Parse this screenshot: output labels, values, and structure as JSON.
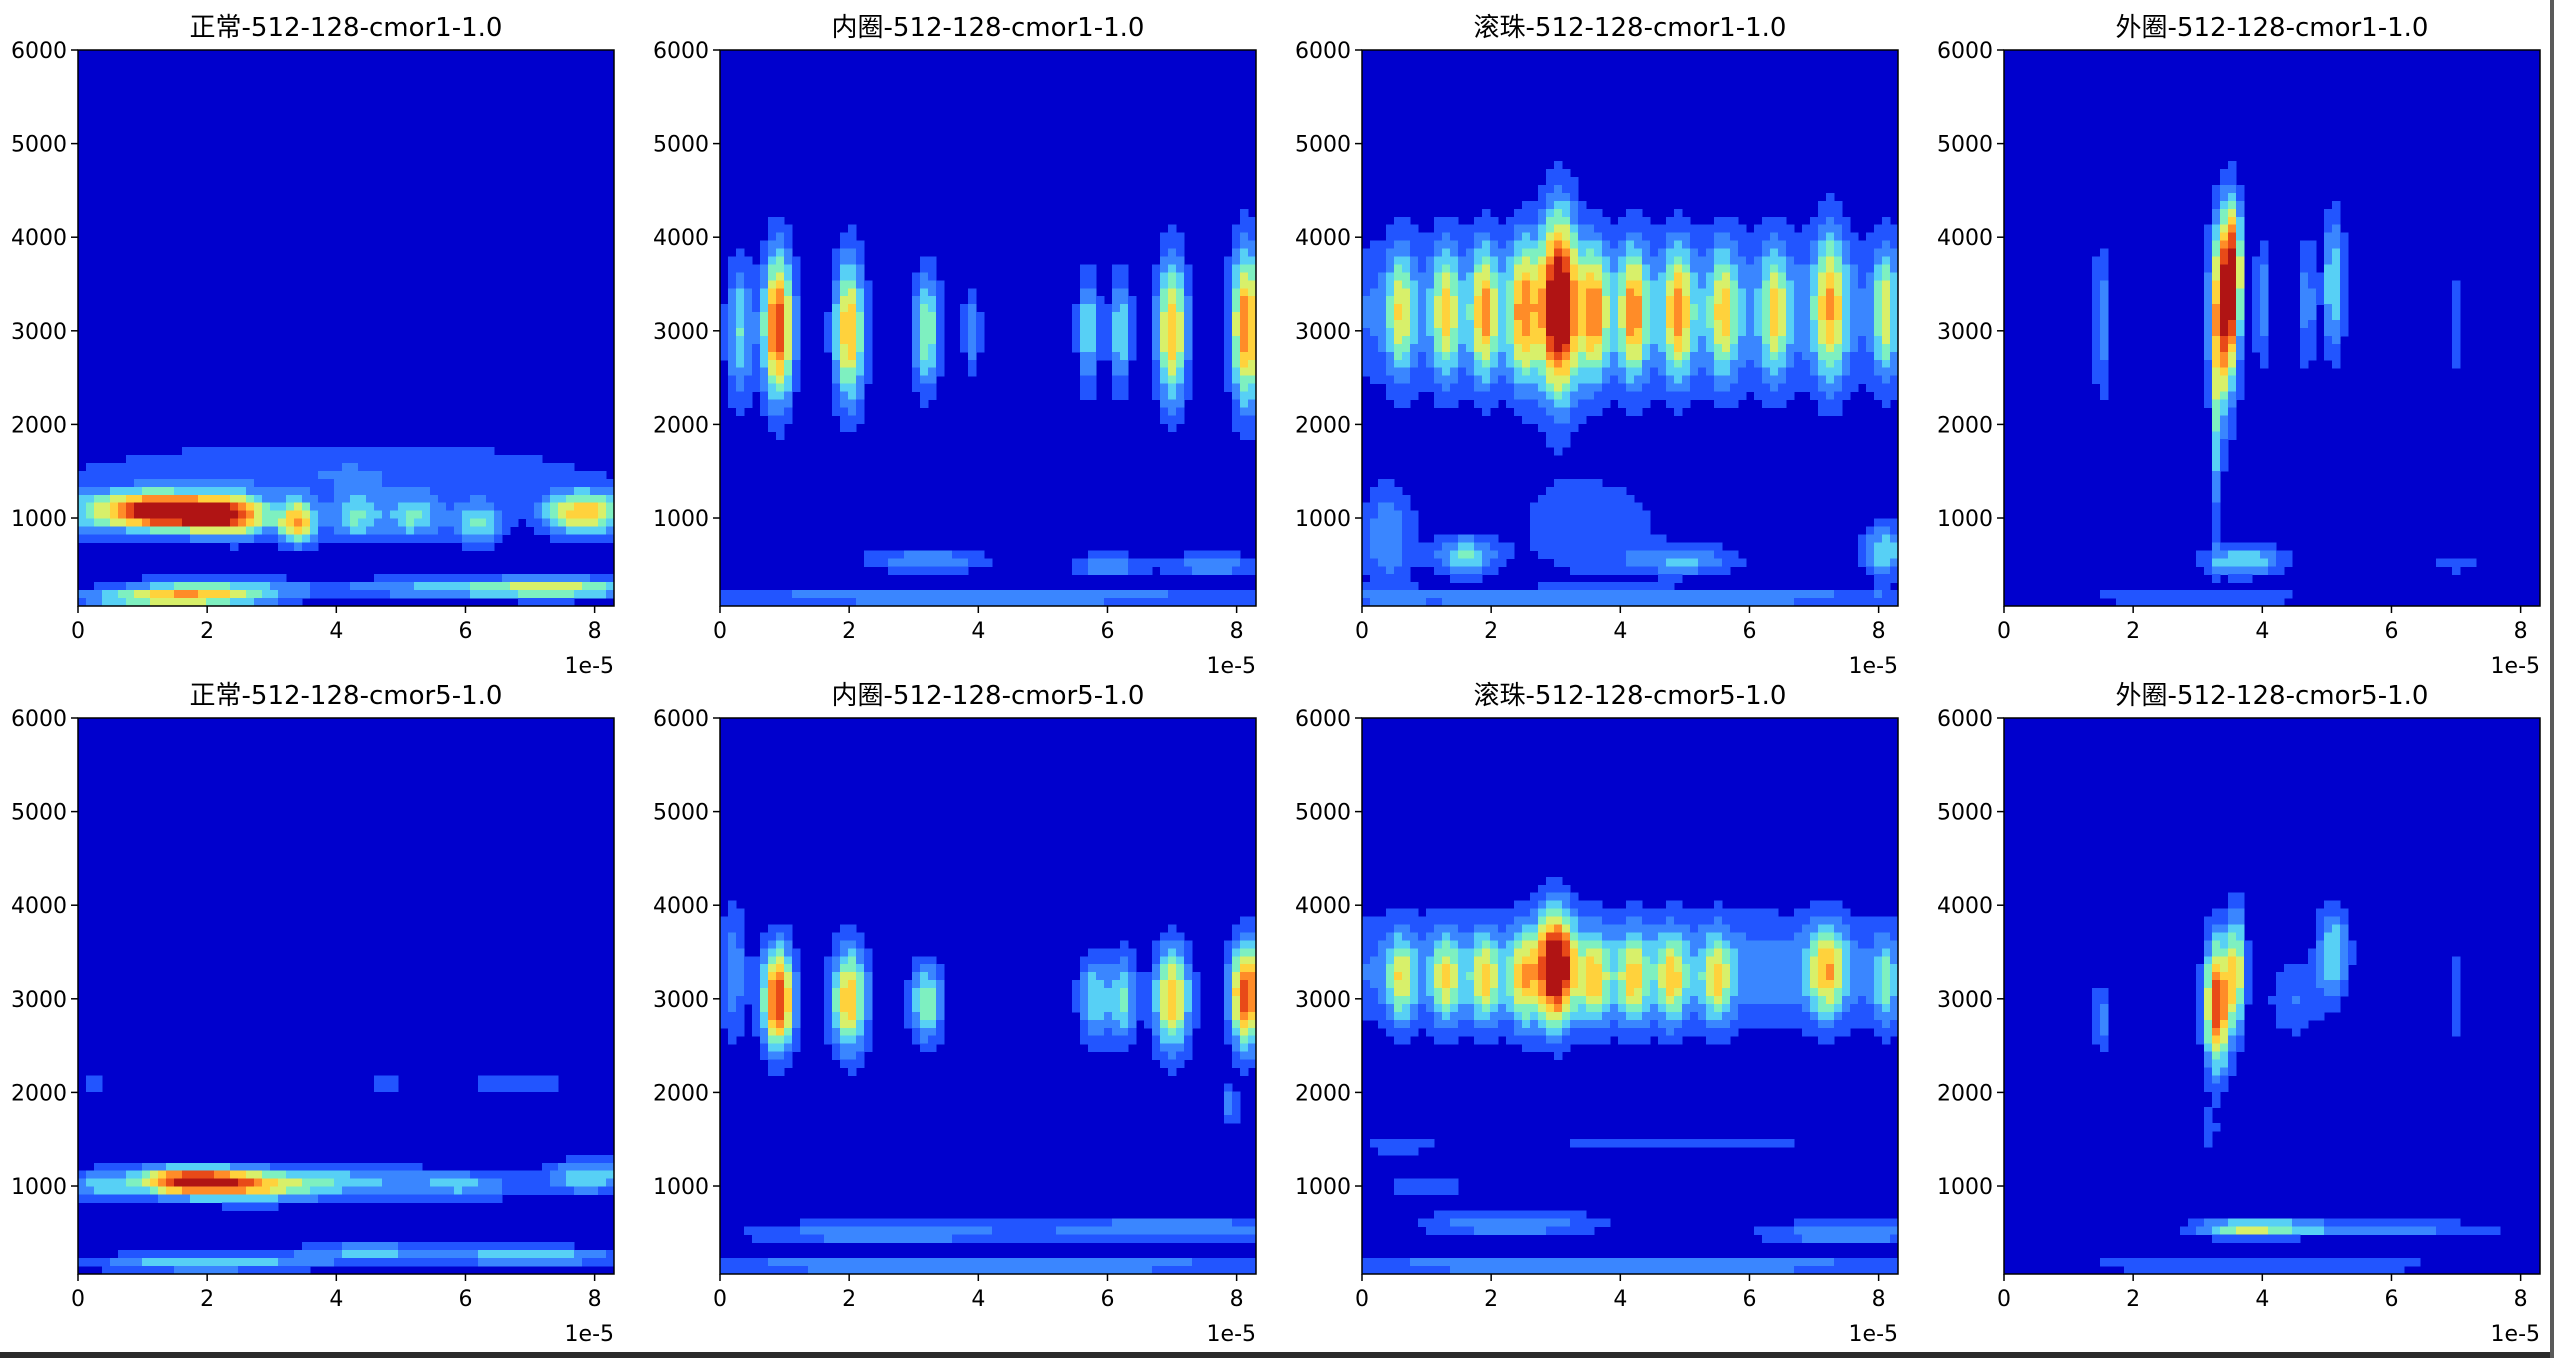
{
  "colors": {
    "background": "#0000cd",
    "levels": [
      "#0000cd",
      "#2255ff",
      "#3a86ff",
      "#57d0f5",
      "#7ef0c0",
      "#d8f06a",
      "#ffd23c",
      "#ff8c28",
      "#e84a18",
      "#b01414"
    ]
  },
  "chart_data": [
    {
      "type": "heatmap",
      "title": "正常-512-128-cmor1-1.0",
      "x_ticks": [
        "0",
        "2",
        "4",
        "6",
        "8"
      ],
      "x_offset_label": "1e-5",
      "y_ticks": [
        "1000",
        "2000",
        "3000",
        "4000",
        "5000",
        "6000"
      ],
      "xlim": [
        0,
        8.3
      ],
      "ylim": [
        60,
        6000
      ],
      "blobs": [
        {
          "x": 1.8,
          "y": 1050,
          "sx": 0.55,
          "sy": 140,
          "v": 9
        },
        {
          "x": 1.0,
          "y": 1080,
          "sx": 0.45,
          "sy": 140,
          "v": 7
        },
        {
          "x": 2.5,
          "y": 1000,
          "sx": 0.4,
          "sy": 160,
          "v": 5
        },
        {
          "x": 3.4,
          "y": 950,
          "sx": 0.2,
          "sy": 160,
          "v": 7
        },
        {
          "x": 4.3,
          "y": 1000,
          "sx": 0.3,
          "sy": 180,
          "v": 4
        },
        {
          "x": 5.2,
          "y": 1000,
          "sx": 0.3,
          "sy": 170,
          "v": 4
        },
        {
          "x": 6.2,
          "y": 950,
          "sx": 0.3,
          "sy": 170,
          "v": 4
        },
        {
          "x": 7.6,
          "y": 1050,
          "sx": 0.35,
          "sy": 170,
          "v": 5
        },
        {
          "x": 8.1,
          "y": 1050,
          "sx": 0.3,
          "sy": 170,
          "v": 4
        },
        {
          "x": 0.2,
          "y": 1050,
          "sx": 0.35,
          "sy": 200,
          "v": 3
        },
        {
          "x": 2.0,
          "y": 250,
          "sx": 1.0,
          "sy": 80,
          "v": 4
        },
        {
          "x": 5.5,
          "y": 250,
          "sx": 1.2,
          "sy": 80,
          "v": 3
        },
        {
          "x": 7.5,
          "y": 250,
          "sx": 0.9,
          "sy": 80,
          "v": 5
        },
        {
          "x": 1.5,
          "y": 140,
          "sx": 1.0,
          "sy": 60,
          "v": 6
        },
        {
          "x": 4.0,
          "y": 1500,
          "sx": 3.0,
          "sy": 250,
          "v": 2
        }
      ]
    },
    {
      "type": "heatmap",
      "title": "内圈-512-128-cmor1-1.0",
      "x_ticks": [
        "0",
        "2",
        "4",
        "6",
        "8"
      ],
      "x_offset_label": "1e-5",
      "y_ticks": [
        "1000",
        "2000",
        "3000",
        "4000",
        "5000",
        "6000"
      ],
      "xlim": [
        0,
        8.3
      ],
      "ylim": [
        60,
        6000
      ],
      "blobs": [
        {
          "x": 0.9,
          "y": 3050,
          "sx": 0.17,
          "sy": 560,
          "v": 9
        },
        {
          "x": 2.0,
          "y": 3000,
          "sx": 0.17,
          "sy": 560,
          "v": 7
        },
        {
          "x": 3.2,
          "y": 3000,
          "sx": 0.15,
          "sy": 450,
          "v": 5
        },
        {
          "x": 3.9,
          "y": 3000,
          "sx": 0.1,
          "sy": 300,
          "v": 3
        },
        {
          "x": 5.7,
          "y": 3000,
          "sx": 0.12,
          "sy": 450,
          "v": 4
        },
        {
          "x": 6.2,
          "y": 3000,
          "sx": 0.12,
          "sy": 450,
          "v": 4
        },
        {
          "x": 7.0,
          "y": 3000,
          "sx": 0.17,
          "sy": 560,
          "v": 7
        },
        {
          "x": 8.15,
          "y": 3050,
          "sx": 0.17,
          "sy": 600,
          "v": 8
        },
        {
          "x": 0.3,
          "y": 3000,
          "sx": 0.15,
          "sy": 550,
          "v": 4
        },
        {
          "x": 3.2,
          "y": 550,
          "sx": 0.7,
          "sy": 90,
          "v": 3
        },
        {
          "x": 6.0,
          "y": 500,
          "sx": 0.4,
          "sy": 90,
          "v": 3
        },
        {
          "x": 7.6,
          "y": 500,
          "sx": 0.5,
          "sy": 90,
          "v": 3
        },
        {
          "x": 4.0,
          "y": 150,
          "sx": 4.5,
          "sy": 60,
          "v": 3
        }
      ]
    },
    {
      "type": "heatmap",
      "title": "滚珠-512-128-cmor1-1.0",
      "x_ticks": [
        "0",
        "2",
        "4",
        "6",
        "8"
      ],
      "x_offset_label": "1e-5",
      "y_ticks": [
        "1000",
        "2000",
        "3000",
        "4000",
        "5000",
        "6000"
      ],
      "xlim": [
        0,
        8.3
      ],
      "ylim": [
        60,
        6000
      ],
      "blobs": [
        {
          "x": 3.05,
          "y": 3300,
          "sx": 0.2,
          "sy": 700,
          "v": 9
        },
        {
          "x": 2.5,
          "y": 3200,
          "sx": 0.15,
          "sy": 550,
          "v": 5
        },
        {
          "x": 0.6,
          "y": 3200,
          "sx": 0.14,
          "sy": 500,
          "v": 4
        },
        {
          "x": 1.3,
          "y": 3200,
          "sx": 0.14,
          "sy": 500,
          "v": 4
        },
        {
          "x": 1.9,
          "y": 3200,
          "sx": 0.14,
          "sy": 500,
          "v": 5
        },
        {
          "x": 3.6,
          "y": 3200,
          "sx": 0.14,
          "sy": 500,
          "v": 5
        },
        {
          "x": 4.2,
          "y": 3200,
          "sx": 0.14,
          "sy": 500,
          "v": 5
        },
        {
          "x": 4.9,
          "y": 3200,
          "sx": 0.14,
          "sy": 500,
          "v": 5
        },
        {
          "x": 5.6,
          "y": 3200,
          "sx": 0.14,
          "sy": 500,
          "v": 4
        },
        {
          "x": 6.4,
          "y": 3200,
          "sx": 0.14,
          "sy": 500,
          "v": 4
        },
        {
          "x": 7.25,
          "y": 3300,
          "sx": 0.17,
          "sy": 600,
          "v": 5
        },
        {
          "x": 8.1,
          "y": 3200,
          "sx": 0.12,
          "sy": 500,
          "v": 4
        },
        {
          "x": 4.0,
          "y": 3200,
          "sx": 4.5,
          "sy": 600,
          "v": 3
        },
        {
          "x": 1.6,
          "y": 600,
          "sx": 0.35,
          "sy": 150,
          "v": 4
        },
        {
          "x": 0.4,
          "y": 800,
          "sx": 0.3,
          "sy": 400,
          "v": 3
        },
        {
          "x": 3.5,
          "y": 900,
          "sx": 0.8,
          "sy": 400,
          "v": 2
        },
        {
          "x": 5.0,
          "y": 550,
          "sx": 0.6,
          "sy": 120,
          "v": 3
        },
        {
          "x": 8.1,
          "y": 650,
          "sx": 0.25,
          "sy": 200,
          "v": 4
        },
        {
          "x": 4.0,
          "y": 150,
          "sx": 4.5,
          "sy": 70,
          "v": 3
        }
      ]
    },
    {
      "type": "heatmap",
      "title": "外圈-512-128-cmor1-1.0",
      "x_ticks": [
        "0",
        "2",
        "4",
        "6",
        "8"
      ],
      "x_offset_label": "1e-5",
      "y_ticks": [
        "1000",
        "2000",
        "3000",
        "4000",
        "5000",
        "6000"
      ],
      "xlim": [
        0,
        8.3
      ],
      "ylim": [
        60,
        6000
      ],
      "blobs": [
        {
          "x": 3.4,
          "y": 3200,
          "sx": 0.15,
          "sy": 700,
          "v": 9
        },
        {
          "x": 3.55,
          "y": 3700,
          "sx": 0.1,
          "sy": 500,
          "v": 6
        },
        {
          "x": 3.3,
          "y": 1800,
          "sx": 0.06,
          "sy": 700,
          "v": 3
        },
        {
          "x": 1.5,
          "y": 3100,
          "sx": 0.08,
          "sy": 600,
          "v": 3
        },
        {
          "x": 4.0,
          "y": 3300,
          "sx": 0.1,
          "sy": 450,
          "v": 3
        },
        {
          "x": 4.7,
          "y": 3300,
          "sx": 0.08,
          "sy": 500,
          "v": 3
        },
        {
          "x": 5.1,
          "y": 3500,
          "sx": 0.12,
          "sy": 550,
          "v": 4
        },
        {
          "x": 7.0,
          "y": 3100,
          "sx": 0.05,
          "sy": 400,
          "v": 2
        },
        {
          "x": 3.7,
          "y": 550,
          "sx": 0.45,
          "sy": 120,
          "v": 4
        },
        {
          "x": 7.0,
          "y": 500,
          "sx": 0.3,
          "sy": 50,
          "v": 2
        },
        {
          "x": 3.0,
          "y": 150,
          "sx": 1.5,
          "sy": 60,
          "v": 2
        }
      ]
    },
    {
      "type": "heatmap",
      "title": "正常-512-128-cmor5-1.0",
      "x_ticks": [
        "0",
        "2",
        "4",
        "6",
        "8"
      ],
      "x_offset_label": "1e-5",
      "y_ticks": [
        "1000",
        "2000",
        "3000",
        "4000",
        "5000",
        "6000"
      ],
      "xlim": [
        0,
        8.3
      ],
      "ylim": [
        60,
        6000
      ],
      "blobs": [
        {
          "x": 1.7,
          "y": 1050,
          "sx": 0.65,
          "sy": 110,
          "v": 9
        },
        {
          "x": 2.8,
          "y": 1000,
          "sx": 0.7,
          "sy": 120,
          "v": 5
        },
        {
          "x": 4.3,
          "y": 1050,
          "sx": 0.8,
          "sy": 130,
          "v": 3
        },
        {
          "x": 6.0,
          "y": 1000,
          "sx": 0.6,
          "sy": 120,
          "v": 3
        },
        {
          "x": 7.9,
          "y": 1100,
          "sx": 0.5,
          "sy": 130,
          "v": 4
        },
        {
          "x": 0.3,
          "y": 1000,
          "sx": 0.3,
          "sy": 120,
          "v": 3
        },
        {
          "x": 2.0,
          "y": 180,
          "sx": 1.3,
          "sy": 70,
          "v": 4
        },
        {
          "x": 4.5,
          "y": 300,
          "sx": 0.8,
          "sy": 70,
          "v": 3
        },
        {
          "x": 7.0,
          "y": 250,
          "sx": 1.0,
          "sy": 70,
          "v": 4
        },
        {
          "x": 0.2,
          "y": 2100,
          "sx": 0.12,
          "sy": 80,
          "v": 2
        },
        {
          "x": 4.8,
          "y": 2100,
          "sx": 0.18,
          "sy": 70,
          "v": 2
        },
        {
          "x": 6.8,
          "y": 2100,
          "sx": 0.6,
          "sy": 70,
          "v": 2
        }
      ]
    },
    {
      "type": "heatmap",
      "title": "内圈-512-128-cmor5-1.0",
      "x_ticks": [
        "0",
        "2",
        "4",
        "6",
        "8"
      ],
      "x_offset_label": "1e-5",
      "y_ticks": [
        "1000",
        "2000",
        "3000",
        "4000",
        "5000",
        "6000"
      ],
      "xlim": [
        0,
        8.3
      ],
      "ylim": [
        60,
        6000
      ],
      "blobs": [
        {
          "x": 0.9,
          "y": 3000,
          "sx": 0.18,
          "sy": 400,
          "v": 9
        },
        {
          "x": 2.0,
          "y": 3000,
          "sx": 0.2,
          "sy": 400,
          "v": 7
        },
        {
          "x": 3.2,
          "y": 2950,
          "sx": 0.18,
          "sy": 300,
          "v": 5
        },
        {
          "x": 5.8,
          "y": 3000,
          "sx": 0.18,
          "sy": 350,
          "v": 4
        },
        {
          "x": 6.25,
          "y": 3000,
          "sx": 0.15,
          "sy": 350,
          "v": 4
        },
        {
          "x": 7.0,
          "y": 3000,
          "sx": 0.2,
          "sy": 400,
          "v": 7
        },
        {
          "x": 8.15,
          "y": 3050,
          "sx": 0.18,
          "sy": 400,
          "v": 9
        },
        {
          "x": 0.2,
          "y": 3300,
          "sx": 0.15,
          "sy": 500,
          "v": 3
        },
        {
          "x": 7.9,
          "y": 1850,
          "sx": 0.08,
          "sy": 150,
          "v": 3
        },
        {
          "x": 2.5,
          "y": 500,
          "sx": 1.5,
          "sy": 90,
          "v": 3
        },
        {
          "x": 7.0,
          "y": 550,
          "sx": 1.5,
          "sy": 90,
          "v": 3
        },
        {
          "x": 4.0,
          "y": 150,
          "sx": 4.5,
          "sy": 70,
          "v": 3
        }
      ]
    },
    {
      "type": "heatmap",
      "title": "滚珠-512-128-cmor5-1.0",
      "x_ticks": [
        "0",
        "2",
        "4",
        "6",
        "8"
      ],
      "x_offset_label": "1e-5",
      "y_ticks": [
        "1000",
        "2000",
        "3000",
        "4000",
        "5000",
        "6000"
      ],
      "xlim": [
        0,
        8.3
      ],
      "ylim": [
        60,
        6000
      ],
      "blobs": [
        {
          "x": 3.0,
          "y": 3350,
          "sx": 0.2,
          "sy": 420,
          "v": 9
        },
        {
          "x": 2.5,
          "y": 3200,
          "sx": 0.15,
          "sy": 350,
          "v": 4
        },
        {
          "x": 0.6,
          "y": 3200,
          "sx": 0.15,
          "sy": 330,
          "v": 4
        },
        {
          "x": 1.3,
          "y": 3200,
          "sx": 0.15,
          "sy": 330,
          "v": 4
        },
        {
          "x": 1.9,
          "y": 3200,
          "sx": 0.15,
          "sy": 330,
          "v": 4
        },
        {
          "x": 3.6,
          "y": 3200,
          "sx": 0.15,
          "sy": 330,
          "v": 4
        },
        {
          "x": 4.2,
          "y": 3200,
          "sx": 0.15,
          "sy": 330,
          "v": 4
        },
        {
          "x": 4.8,
          "y": 3200,
          "sx": 0.15,
          "sy": 330,
          "v": 4
        },
        {
          "x": 5.5,
          "y": 3200,
          "sx": 0.15,
          "sy": 330,
          "v": 4
        },
        {
          "x": 7.2,
          "y": 3300,
          "sx": 0.2,
          "sy": 350,
          "v": 5
        },
        {
          "x": 8.1,
          "y": 3150,
          "sx": 0.12,
          "sy": 330,
          "v": 3
        },
        {
          "x": 4.0,
          "y": 3300,
          "sx": 4.5,
          "sy": 450,
          "v": 3
        },
        {
          "x": 0.6,
          "y": 1450,
          "sx": 0.4,
          "sy": 80,
          "v": 2
        },
        {
          "x": 1.0,
          "y": 1000,
          "sx": 0.5,
          "sy": 80,
          "v": 2
        },
        {
          "x": 5.0,
          "y": 1450,
          "sx": 1.5,
          "sy": 60,
          "v": 2
        },
        {
          "x": 2.3,
          "y": 600,
          "sx": 1.0,
          "sy": 100,
          "v": 3
        },
        {
          "x": 7.5,
          "y": 500,
          "sx": 1.0,
          "sy": 90,
          "v": 3
        },
        {
          "x": 4.0,
          "y": 150,
          "sx": 4.5,
          "sy": 70,
          "v": 3
        }
      ]
    },
    {
      "type": "heatmap",
      "title": "外圈-512-128-cmor5-1.0",
      "x_ticks": [
        "0",
        "2",
        "4",
        "6",
        "8"
      ],
      "x_offset_label": "1e-5",
      "y_ticks": [
        "1000",
        "2000",
        "3000",
        "4000",
        "5000",
        "6000"
      ],
      "xlim": [
        0,
        8.3
      ],
      "ylim": [
        60,
        6000
      ],
      "blobs": [
        {
          "x": 3.3,
          "y": 2950,
          "sx": 0.14,
          "sy": 500,
          "v": 9
        },
        {
          "x": 3.6,
          "y": 3300,
          "sx": 0.1,
          "sy": 450,
          "v": 6
        },
        {
          "x": 1.5,
          "y": 2800,
          "sx": 0.08,
          "sy": 250,
          "v": 3
        },
        {
          "x": 5.1,
          "y": 3500,
          "sx": 0.18,
          "sy": 350,
          "v": 4
        },
        {
          "x": 4.5,
          "y": 3000,
          "sx": 0.3,
          "sy": 300,
          "v": 2
        },
        {
          "x": 7.0,
          "y": 3000,
          "sx": 0.05,
          "sy": 350,
          "v": 2
        },
        {
          "x": 3.2,
          "y": 1600,
          "sx": 0.06,
          "sy": 150,
          "v": 2
        },
        {
          "x": 3.8,
          "y": 550,
          "sx": 0.55,
          "sy": 80,
          "v": 4
        },
        {
          "x": 5.5,
          "y": 550,
          "sx": 1.5,
          "sy": 60,
          "v": 3
        },
        {
          "x": 4.0,
          "y": 150,
          "sx": 2.5,
          "sy": 60,
          "v": 2
        }
      ]
    }
  ]
}
